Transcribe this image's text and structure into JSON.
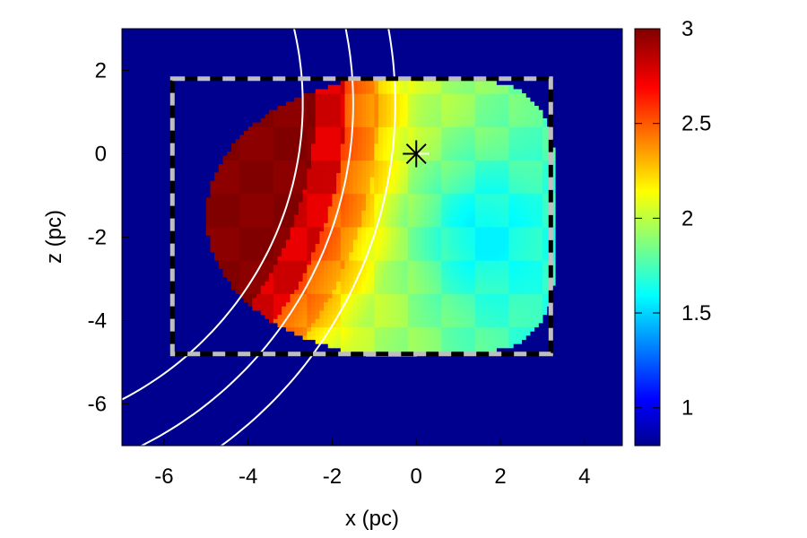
{
  "chart_data": {
    "type": "heatmap",
    "title": "",
    "xlabel": "x (pc)",
    "ylabel": "z (pc)",
    "xlim": [
      -7,
      4.9
    ],
    "ylim": [
      -7,
      3
    ],
    "x_ticks": [
      -6,
      -4,
      -2,
      0,
      2,
      4
    ],
    "y_ticks": [
      2,
      0,
      -2,
      -4,
      -6
    ],
    "colorbar": {
      "min": 0.8,
      "max": 3.0,
      "ticks": [
        1,
        1.5,
        2,
        2.5,
        3
      ],
      "colormap": "jet"
    },
    "background_value": 0.8,
    "high_value_region": {
      "description_values": {
        "outer_left_edge": 3.0,
        "center": 1.8,
        "right_lobe": 1.6
      }
    },
    "box": {
      "x0": -5.8,
      "x1": 3.2,
      "z0": -4.8,
      "z1": 1.8
    },
    "star_marker": {
      "x": 0,
      "z": 0
    },
    "arcs": [
      {
        "center_x": -10.7,
        "center_z": 1.2,
        "radius": 8.0
      },
      {
        "center_x": -10.7,
        "center_z": 1.2,
        "radius": 9.2
      },
      {
        "center_x": -10.7,
        "center_z": 1.2,
        "radius": 10.2
      }
    ],
    "colors": {
      "background": "#00008f",
      "frame": "#000000",
      "arc": "#ffffff",
      "box_dash_light": "#bfbfbf",
      "box_dash_dark": "#000000"
    }
  }
}
